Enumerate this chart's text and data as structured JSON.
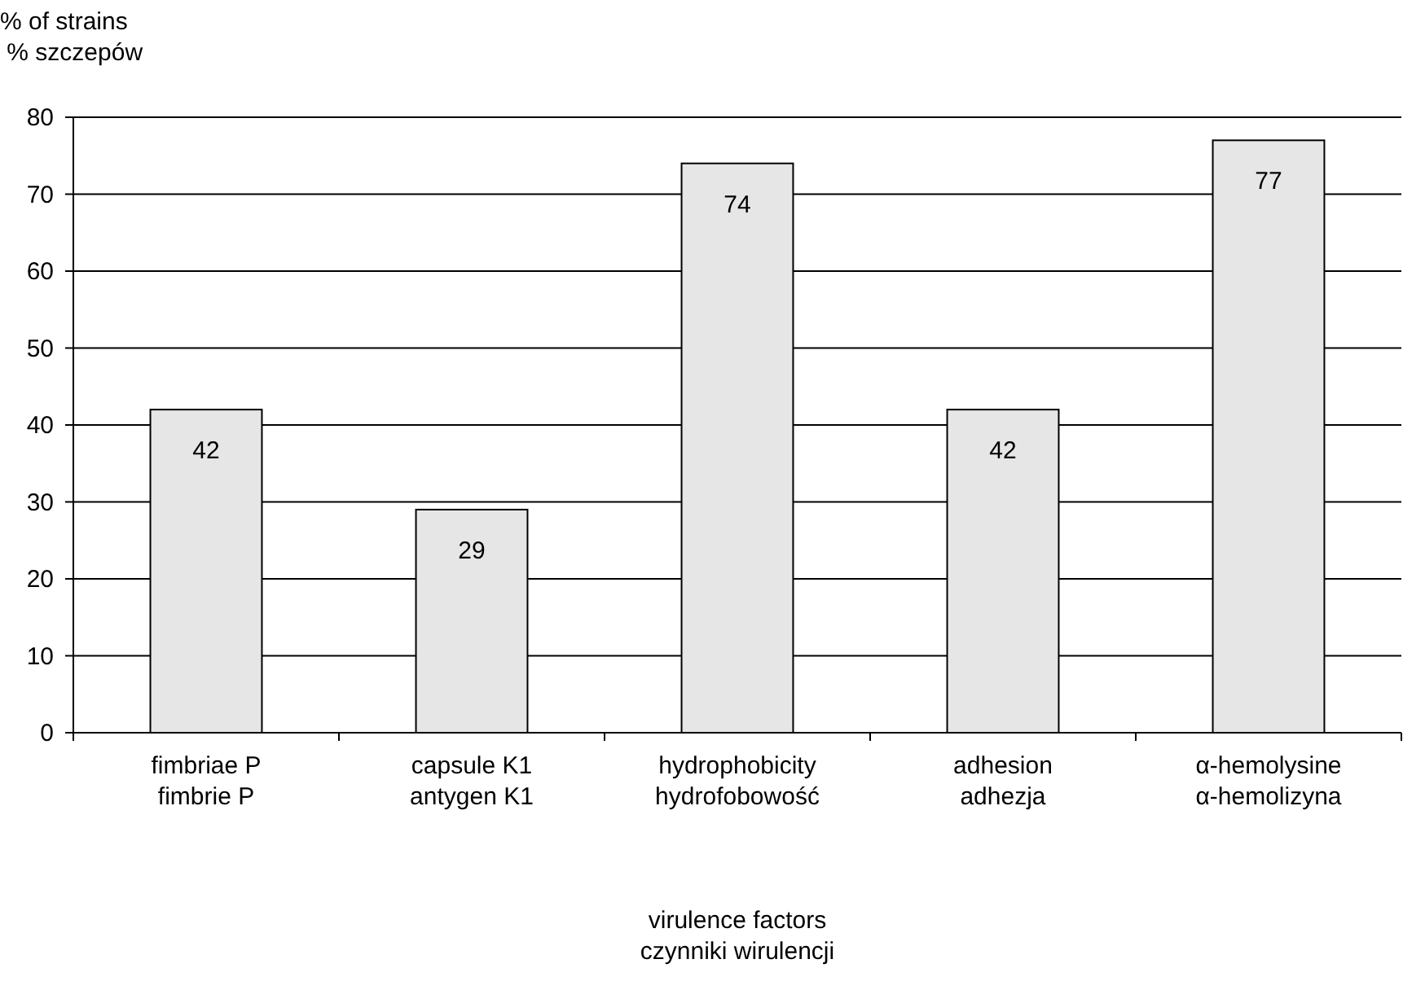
{
  "chart_data": {
    "type": "bar",
    "ylabel": "% of strains\n % szczepów",
    "xlabel": "virulence factors\nczynniki wirulencji",
    "categories": [
      "fimbriae P\nfimbrie P",
      "capsule K1\nantygen K1",
      "hydrophobicity\nhydrofobowość",
      "adhesion\nadhezja",
      "α-hemolysine\nα-hemolizyna"
    ],
    "values": [
      42,
      29,
      74,
      42,
      77
    ],
    "color": "#e6e6e6",
    "ylim": [
      0,
      80
    ],
    "yticks": [
      0,
      10,
      20,
      30,
      40,
      50,
      60,
      70,
      80
    ],
    "grid": "y",
    "data_labels": true
  }
}
